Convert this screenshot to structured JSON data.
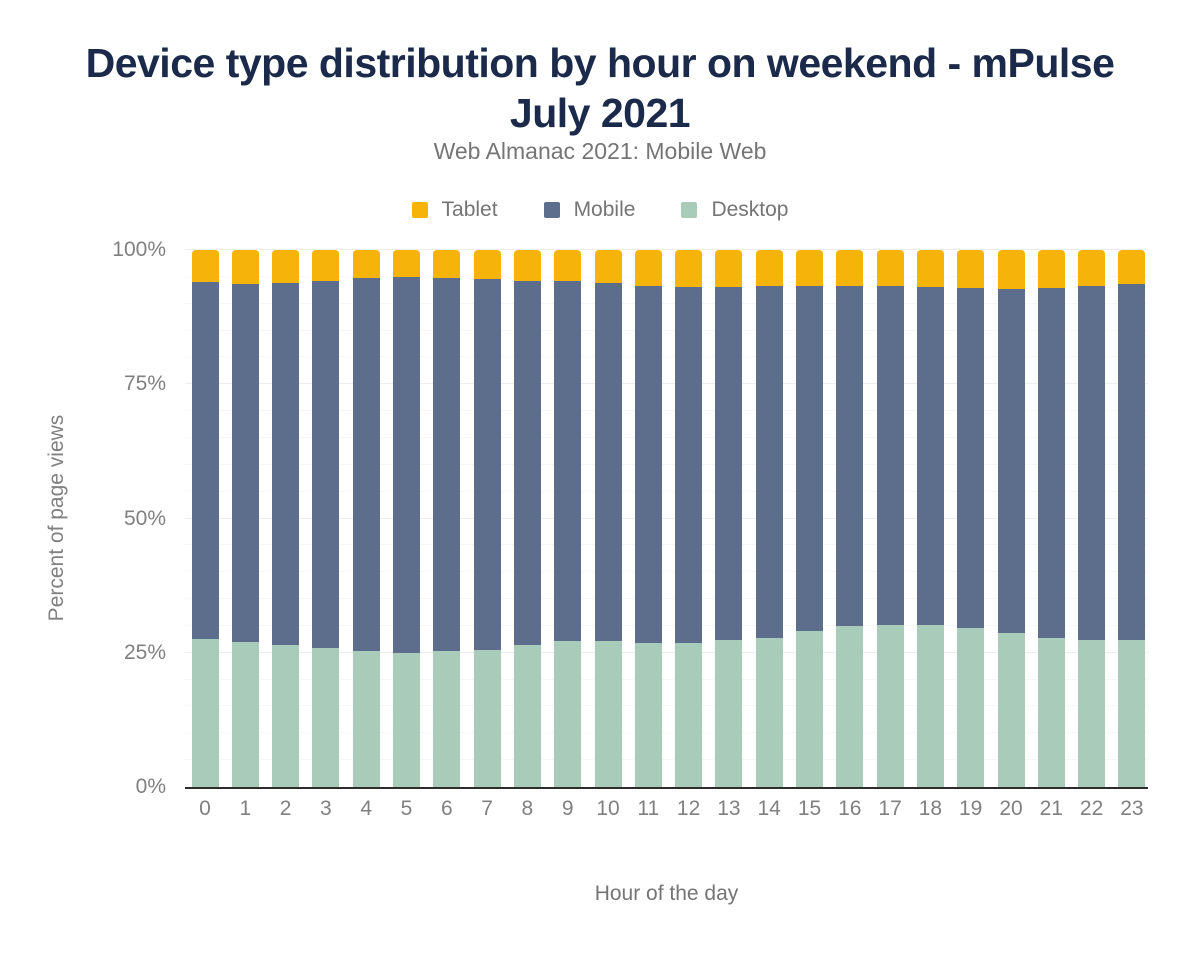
{
  "header": {
    "title": "Device type distribution by hour on weekend - mPulse July 2021",
    "subtitle": "Web Almanac 2021: Mobile Web"
  },
  "colors": {
    "title_text": "#1b2a4a",
    "muted_text": "#757575",
    "axis_text": "#808080",
    "axis_line": "#2d2d2d",
    "background": "#ffffff"
  },
  "chart_data": {
    "type": "bar",
    "stacked": true,
    "stack_order_bottom_to_top": [
      "Desktop",
      "Mobile",
      "Tablet"
    ],
    "title": "Device type distribution by hour on weekend - mPulse July 2021",
    "subtitle": "Web Almanac 2021: Mobile Web",
    "xlabel": "Hour of the day",
    "ylabel": "Percent of page views",
    "ylim": [
      0,
      100
    ],
    "y_ticks": [
      {
        "value": 0,
        "label": "0%"
      },
      {
        "value": 25,
        "label": "25%"
      },
      {
        "value": 50,
        "label": "50%"
      },
      {
        "value": 75,
        "label": "75%"
      },
      {
        "value": 100,
        "label": "100%"
      }
    ],
    "minor_grid_step": 5,
    "legend_position": "top",
    "categories": [
      "0",
      "1",
      "2",
      "3",
      "4",
      "5",
      "6",
      "7",
      "8",
      "9",
      "10",
      "11",
      "12",
      "13",
      "14",
      "15",
      "16",
      "17",
      "18",
      "19",
      "20",
      "21",
      "22",
      "23"
    ],
    "series": [
      {
        "name": "Tablet",
        "color": "#f6b40a",
        "values": [
          6.0,
          6.3,
          6.1,
          5.7,
          5.2,
          5.0,
          5.2,
          5.4,
          5.7,
          5.8,
          6.1,
          6.7,
          6.8,
          6.8,
          6.7,
          6.7,
          6.7,
          6.7,
          6.8,
          7.1,
          7.2,
          7.0,
          6.7,
          6.3
        ]
      },
      {
        "name": "Mobile",
        "color": "#5d6d8c",
        "values": [
          66.5,
          66.7,
          67.5,
          68.5,
          69.5,
          70.0,
          69.5,
          69.0,
          67.9,
          67.1,
          66.7,
          66.5,
          66.4,
          65.9,
          65.6,
          64.3,
          63.4,
          63.1,
          63.1,
          63.3,
          64.1,
          65.2,
          65.9,
          66.4
        ]
      },
      {
        "name": "Desktop",
        "color": "#a9ccba",
        "values": [
          27.5,
          27.0,
          26.4,
          25.8,
          25.3,
          25.0,
          25.3,
          25.6,
          26.4,
          27.1,
          27.2,
          26.8,
          26.8,
          27.3,
          27.7,
          29.0,
          29.9,
          30.2,
          30.1,
          29.6,
          28.7,
          27.8,
          27.4,
          27.3
        ]
      }
    ]
  }
}
